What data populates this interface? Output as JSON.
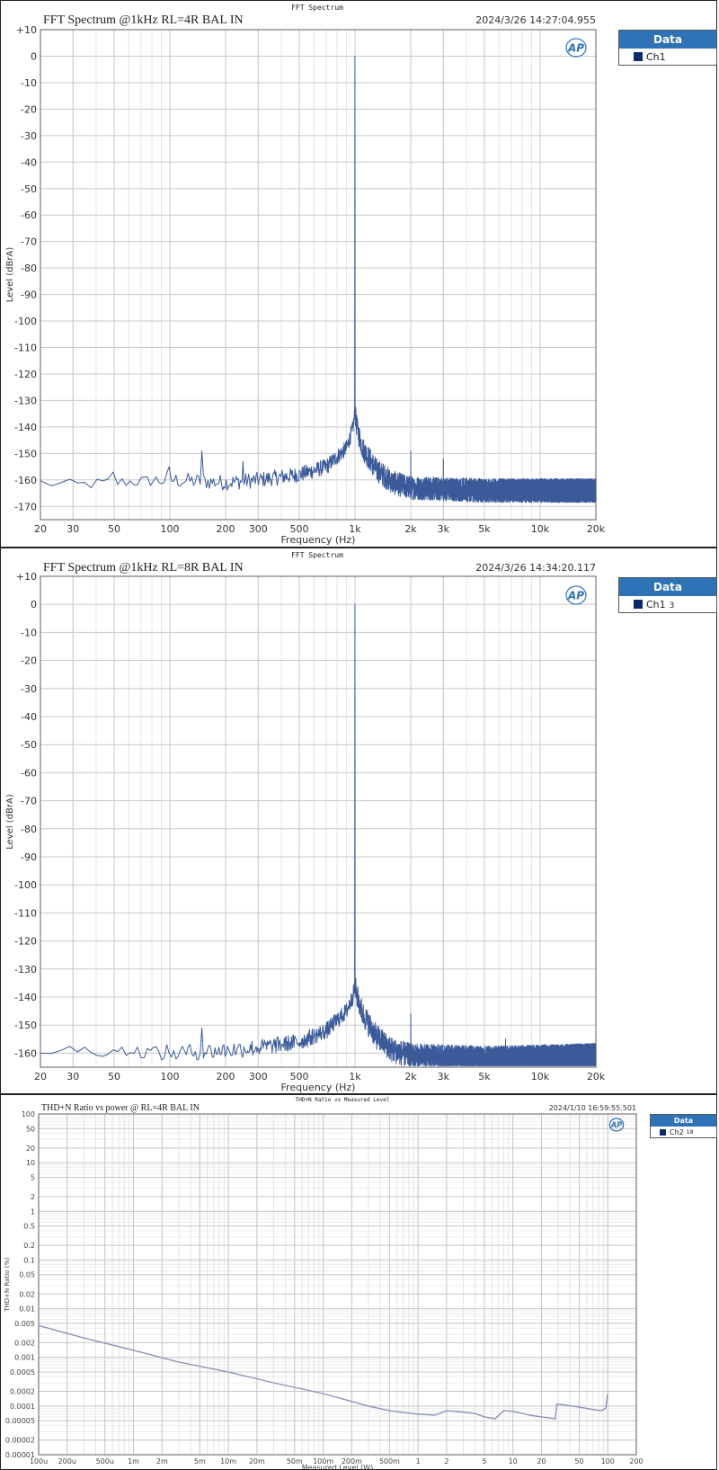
{
  "chart_data": [
    {
      "type": "line",
      "top_title": "FFT Spectrum",
      "title": "FFT Spectrum @1kHz RL=4R BAL IN",
      "timestamp": "2024/3/26 14:27:04.955",
      "xlabel": "Frequency (Hz)",
      "ylabel": "Level (dBrA)",
      "xscale": "log",
      "xlim": [
        20,
        20000
      ],
      "ylim": [
        -175,
        10
      ],
      "xticks": [
        20,
        30,
        50,
        100,
        200,
        300,
        500,
        1000,
        2000,
        3000,
        5000,
        10000,
        20000
      ],
      "xtick_labels": [
        "20",
        "30",
        "50",
        "100",
        "200",
        "300",
        "500",
        "1k",
        "2k",
        "3k",
        "5k",
        "10k",
        "20k"
      ],
      "yticks": [
        10,
        0,
        -10,
        -20,
        -30,
        -40,
        -50,
        -60,
        -70,
        -80,
        -90,
        -100,
        -110,
        -120,
        -130,
        -140,
        -150,
        -160,
        -170
      ],
      "ytick_labels": [
        "+10",
        "0",
        "-10",
        "-20",
        "-30",
        "-40",
        "-50",
        "-60",
        "-70",
        "-80",
        "-90",
        "-100",
        "-110",
        "-120",
        "-130",
        "-140",
        "-150",
        "-160",
        "-170"
      ],
      "grid": true,
      "legend": {
        "title": "Data",
        "placement": "right",
        "entries": [
          {
            "name": "Ch1",
            "suffix": ""
          }
        ]
      },
      "series_color": "#3b5a99",
      "noise_floor": [
        [
          20,
          -161
        ],
        [
          30,
          -162
        ],
        [
          50,
          -161
        ],
        [
          100,
          -160
        ],
        [
          200,
          -161
        ],
        [
          300,
          -160
        ],
        [
          500,
          -158
        ],
        [
          700,
          -155
        ],
        [
          900,
          -148
        ],
        [
          970,
          -141
        ],
        [
          995,
          -136
        ],
        [
          1005,
          -136
        ],
        [
          1030,
          -141
        ],
        [
          1100,
          -148
        ],
        [
          1300,
          -156
        ],
        [
          1600,
          -161
        ],
        [
          2000,
          -163
        ],
        [
          5000,
          -164
        ],
        [
          20000,
          -164
        ]
      ],
      "peaks": [
        [
          1000,
          0
        ],
        [
          50,
          -157
        ],
        [
          100,
          -155
        ],
        [
          150,
          -149
        ],
        [
          250,
          -153
        ],
        [
          2000,
          -149
        ],
        [
          3000,
          -152
        ]
      ]
    },
    {
      "type": "line",
      "top_title": "FFT Spectrum",
      "title": "FFT Spectrum @1kHz RL=8R BAL IN",
      "timestamp": "2024/3/26 14:34:20.117",
      "xlabel": "Frequency (Hz)",
      "ylabel": "Level (dBrA)",
      "xscale": "log",
      "xlim": [
        20,
        20000
      ],
      "ylim": [
        -165,
        10
      ],
      "xticks": [
        20,
        30,
        50,
        100,
        200,
        300,
        500,
        1000,
        2000,
        3000,
        5000,
        10000,
        20000
      ],
      "xtick_labels": [
        "20",
        "30",
        "50",
        "100",
        "200",
        "300",
        "500",
        "1k",
        "2k",
        "3k",
        "5k",
        "10k",
        "20k"
      ],
      "yticks": [
        10,
        0,
        -10,
        -20,
        -30,
        -40,
        -50,
        -60,
        -70,
        -80,
        -90,
        -100,
        -110,
        -120,
        -130,
        -140,
        -150,
        -160
      ],
      "ytick_labels": [
        "+10",
        "0",
        "-10",
        "-20",
        "-30",
        "-40",
        "-50",
        "-60",
        "-70",
        "-80",
        "-90",
        "-100",
        "-110",
        "-120",
        "-130",
        "-140",
        "-150",
        "-160"
      ],
      "grid": true,
      "legend": {
        "title": "Data",
        "placement": "right",
        "entries": [
          {
            "name": "Ch1",
            "suffix": "3"
          }
        ]
      },
      "series_color": "#3b5a99",
      "noise_floor": [
        [
          20,
          -159
        ],
        [
          50,
          -159
        ],
        [
          100,
          -160
        ],
        [
          200,
          -159
        ],
        [
          300,
          -158
        ],
        [
          500,
          -156
        ],
        [
          700,
          -152
        ],
        [
          900,
          -145
        ],
        [
          970,
          -140
        ],
        [
          995,
          -137
        ],
        [
          1005,
          -137
        ],
        [
          1030,
          -140
        ],
        [
          1100,
          -146
        ],
        [
          1300,
          -154
        ],
        [
          1600,
          -159
        ],
        [
          2000,
          -161
        ],
        [
          5000,
          -162
        ],
        [
          20000,
          -161
        ]
      ],
      "peaks": [
        [
          1000,
          0
        ],
        [
          150,
          -151
        ],
        [
          2000,
          -146
        ],
        [
          6500,
          -155
        ]
      ]
    },
    {
      "type": "line",
      "top_title": "THD+N Ratio vs Measured Level",
      "title": "THD+N Ratio vs power @ RL=4R BAL IN",
      "timestamp": "2024/1/10 16:59:55.501",
      "xlabel": "Measured Level (W)",
      "ylabel": "THD+N Ratio (%)",
      "xscale": "log",
      "yscale": "log",
      "xlim": [
        0.0001,
        200
      ],
      "ylim": [
        1e-05,
        100
      ],
      "xticks": [
        0.0001,
        0.0002,
        0.0005,
        0.001,
        0.002,
        0.005,
        0.01,
        0.02,
        0.05,
        0.1,
        0.2,
        0.5,
        1,
        2,
        5,
        10,
        20,
        50,
        100,
        200
      ],
      "xtick_labels": [
        "100u",
        "200u",
        "500u",
        "1m",
        "2m",
        "5m",
        "10m",
        "20m",
        "50m",
        "100m",
        "200m",
        "500m",
        "1",
        "2",
        "5",
        "10",
        "20",
        "50",
        "100",
        "200"
      ],
      "yticks": [
        100,
        50,
        20,
        10,
        5,
        2,
        1,
        0.5,
        0.2,
        0.1,
        0.05,
        0.02,
        0.01,
        0.005,
        0.002,
        0.001,
        0.0005,
        0.0002,
        0.0001,
        5e-05,
        2e-05,
        1e-05
      ],
      "ytick_labels": [
        "100",
        "50",
        "20",
        "10",
        "5",
        "2",
        "1",
        "0.5",
        "0.2",
        "0.1",
        "0.05",
        "0.02",
        "0.01",
        "0.005",
        "0.002",
        "0.001",
        "0.0005",
        "0.0002",
        "0.0001",
        "0.00005",
        "0.00002",
        "0.00001"
      ],
      "grid": true,
      "legend": {
        "title": "Data",
        "placement": "right",
        "entries": [
          {
            "name": "Ch2",
            "suffix": "18"
          }
        ]
      },
      "series_color": "#8a94b8",
      "x": [
        0.0001,
        0.0003,
        0.001,
        0.003,
        0.01,
        0.03,
        0.1,
        0.3,
        0.5,
        1,
        1.5,
        2,
        3,
        4,
        5,
        6.5,
        8,
        10,
        15,
        20,
        28,
        29,
        35,
        50,
        70,
        85,
        95,
        100
      ],
      "y": [
        0.0045,
        0.0025,
        0.0014,
        0.0008,
        0.0005,
        0.0003,
        0.00018,
        0.0001,
        8e-05,
        6.8e-05,
        6.5e-05,
        8e-05,
        7.5e-05,
        7e-05,
        6e-05,
        5.5e-05,
        8e-05,
        7.8e-05,
        6.5e-05,
        6e-05,
        5.5e-05,
        0.00011,
        0.000105,
        9.5e-05,
        8.5e-05,
        8e-05,
        9e-05,
        0.00018
      ]
    }
  ]
}
